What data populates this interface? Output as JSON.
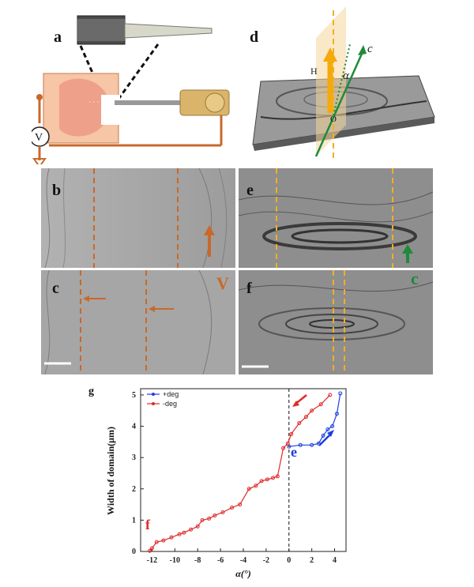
{
  "figure": {
    "panel_labels": {
      "a": "a",
      "b": "b",
      "c": "c",
      "d": "d",
      "e": "e",
      "f": "f",
      "g": "g"
    },
    "schematic_a": {
      "voltmeter_symbol": "V"
    },
    "schematic_d": {
      "field_label": "H",
      "alpha_label": "α",
      "c_axis_label": "c",
      "origin_label": "O"
    },
    "arrow_labels": {
      "voltage": "V",
      "c_axis": "c"
    },
    "colors": {
      "orange": "#c8692b",
      "green": "#1f8a3a",
      "gold": "#f2b01e",
      "red": "#e02a2a",
      "blue": "#1d3fe0"
    }
  },
  "chart_data": {
    "type": "line",
    "title": "",
    "xlabel": "α(°)",
    "ylabel": "Width of domain(μm)",
    "xlim": [
      -13,
      5
    ],
    "ylim": [
      0,
      5.2
    ],
    "xticks": [
      -12,
      -10,
      -8,
      -6,
      -4,
      -2,
      0,
      2,
      4
    ],
    "yticks": [
      0,
      1,
      2,
      3,
      4,
      5
    ],
    "legend_position": "top-left",
    "vline_x": 0,
    "annotations": [
      {
        "text": "f",
        "near": "red-low"
      },
      {
        "text": "e",
        "near": "zero"
      }
    ],
    "series": [
      {
        "name": "+deg",
        "color": "#1d3fe0",
        "x": [
          0,
          1,
          2,
          2.6,
          3,
          3.4,
          3.8,
          4.2,
          4.5
        ],
        "y": [
          3.35,
          3.4,
          3.4,
          3.45,
          3.7,
          3.9,
          4.0,
          4.4,
          5.05
        ]
      },
      {
        "name": "-deg",
        "color": "#e02a2a",
        "x": [
          -12.2,
          -12.0,
          -11.6,
          -11.0,
          -10.3,
          -9.6,
          -9.2,
          -8.6,
          -8.0,
          -7.6,
          -7.0,
          -6.5,
          -5.8,
          -5.0,
          -4.3,
          -3.5,
          -2.9,
          -2.4,
          -1.9,
          -1.4,
          -1.0,
          -0.5,
          -0.1,
          0.2,
          0.9,
          1.5,
          2.0,
          2.8,
          3.6
        ],
        "y": [
          0.02,
          0.1,
          0.3,
          0.35,
          0.45,
          0.55,
          0.6,
          0.7,
          0.8,
          1.0,
          1.05,
          1.15,
          1.25,
          1.4,
          1.5,
          2.0,
          2.1,
          2.25,
          2.3,
          2.35,
          2.4,
          3.3,
          3.45,
          3.75,
          4.1,
          4.3,
          4.5,
          4.7,
          5.0
        ]
      }
    ]
  }
}
